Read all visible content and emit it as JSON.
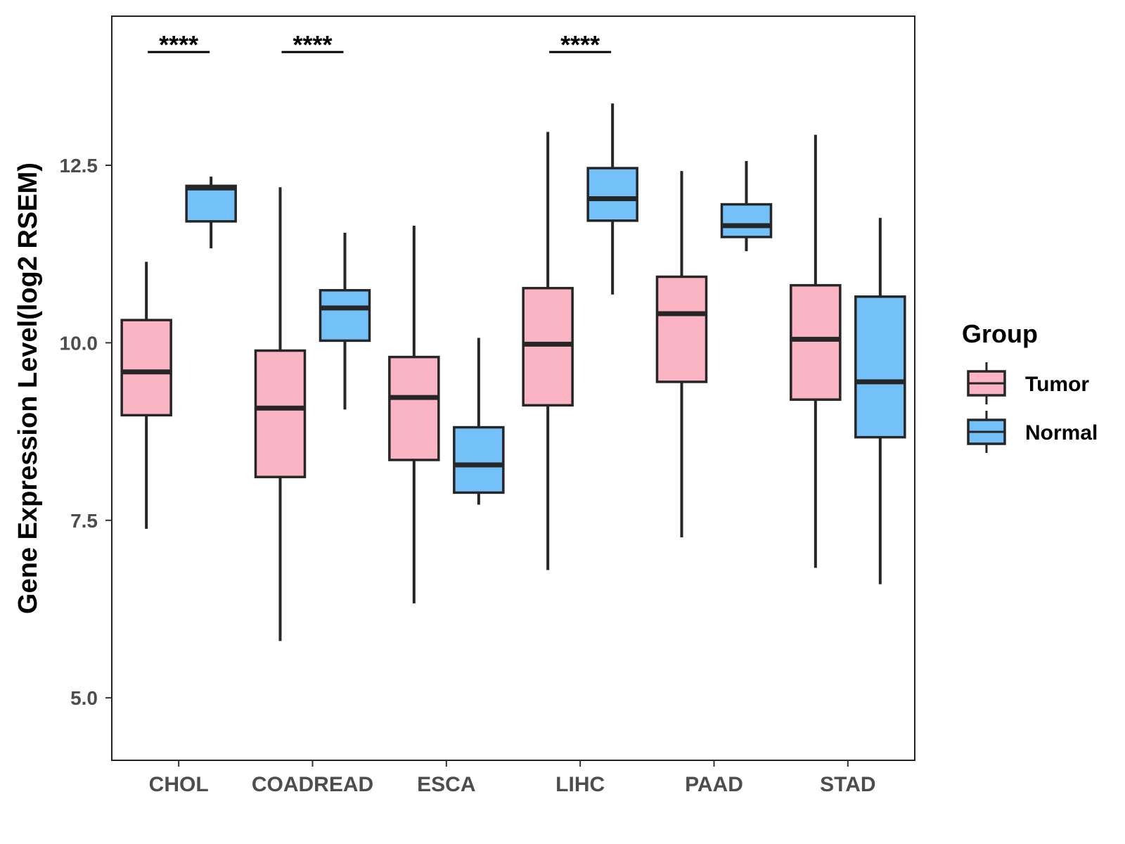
{
  "chart_data": {
    "type": "boxplot",
    "title": "",
    "xlabel": "",
    "ylabel": "Gene Expression Level(log2 RSEM)",
    "ylim": [
      4.12,
      14.6
    ],
    "yticks": [
      "5.0",
      "7.5",
      "10.0",
      "12.5"
    ],
    "categories": [
      "CHOL",
      "COADREAD",
      "ESCA",
      "LIHC",
      "PAAD",
      "STAD"
    ],
    "legend": {
      "title": "Group",
      "position": "right",
      "entries": [
        {
          "name": "Tumor",
          "color": "#FBB4C4"
        },
        {
          "name": "Normal",
          "color": "#74C0F8"
        }
      ]
    },
    "series": [
      {
        "name": "Tumor",
        "color": "#FBB4C4",
        "boxes": [
          {
            "min": 7.38,
            "q1": 8.98,
            "median": 9.59,
            "q3": 10.32,
            "max": 11.14
          },
          {
            "min": 5.8,
            "q1": 8.11,
            "median": 9.08,
            "q3": 9.89,
            "max": 12.19
          },
          {
            "min": 6.33,
            "q1": 8.35,
            "median": 9.23,
            "q3": 9.8,
            "max": 11.65
          },
          {
            "min": 6.8,
            "q1": 9.12,
            "median": 9.98,
            "q3": 10.77,
            "max": 12.97
          },
          {
            "min": 7.26,
            "q1": 9.45,
            "median": 10.41,
            "q3": 10.93,
            "max": 12.42
          },
          {
            "min": 6.83,
            "q1": 9.2,
            "median": 10.05,
            "q3": 10.81,
            "max": 12.93
          }
        ]
      },
      {
        "name": "Normal",
        "color": "#74C0F8",
        "boxes": [
          {
            "min": 11.33,
            "q1": 11.71,
            "median": 12.18,
            "q3": 12.21,
            "max": 12.34
          },
          {
            "min": 9.06,
            "q1": 10.03,
            "median": 10.49,
            "q3": 10.74,
            "max": 11.55
          },
          {
            "min": 7.72,
            "q1": 7.89,
            "median": 8.28,
            "q3": 8.81,
            "max": 10.07
          },
          {
            "min": 10.68,
            "q1": 11.72,
            "median": 12.03,
            "q3": 12.46,
            "max": 13.37
          },
          {
            "min": 11.29,
            "q1": 11.49,
            "median": 11.65,
            "q3": 11.95,
            "max": 12.56
          },
          {
            "min": 6.6,
            "q1": 8.67,
            "median": 9.45,
            "q3": 10.65,
            "max": 11.76
          }
        ]
      }
    ],
    "annotations": [
      {
        "category": "CHOL",
        "label": "****"
      },
      {
        "category": "COADREAD",
        "label": "****"
      },
      {
        "category": "LIHC",
        "label": "****"
      }
    ]
  }
}
